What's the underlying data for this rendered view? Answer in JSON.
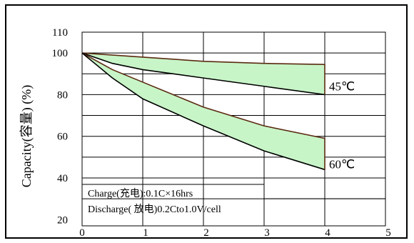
{
  "chart_data": {
    "type": "area",
    "ylabel": "Capacity(容量) (%)",
    "xlabel": "",
    "xlim": [
      0,
      5
    ],
    "ylim": [
      17,
      110
    ],
    "x_ticks": [
      0,
      1,
      2,
      3,
      4,
      5
    ],
    "y_ticks": [
      20,
      40,
      60,
      80,
      100,
      110
    ],
    "grid": true,
    "fill_color": "#c8f5c8",
    "series": [
      {
        "name": "45℃",
        "upper": {
          "x": [
            0,
            1,
            2,
            3,
            4
          ],
          "y": [
            100,
            98,
            96,
            95,
            94.5
          ]
        },
        "lower": {
          "x": [
            0,
            0.5,
            1,
            2,
            3,
            4
          ],
          "y": [
            100,
            95,
            92,
            88,
            84,
            80
          ]
        }
      },
      {
        "name": "60℃",
        "upper": {
          "x": [
            0,
            0.5,
            1,
            2,
            3,
            4
          ],
          "y": [
            100,
            92,
            86,
            74,
            65,
            59
          ]
        },
        "lower": {
          "x": [
            0,
            0.5,
            1,
            2,
            3,
            4
          ],
          "y": [
            100,
            88,
            78,
            65,
            53,
            44
          ]
        }
      }
    ],
    "annotations": {
      "charge": "Charge(充电):0.1C×16hrs",
      "discharge": "Discharge( 放电)0.2Cto1.0V/cell"
    }
  }
}
